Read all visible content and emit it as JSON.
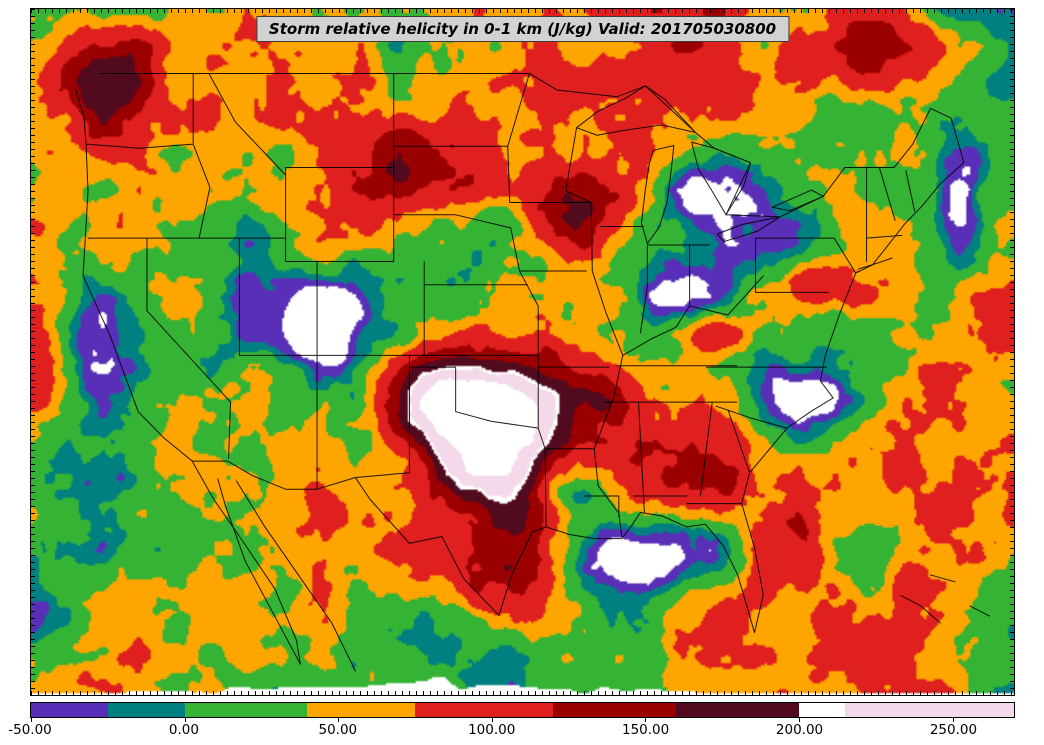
{
  "chart_data": {
    "type": "heatmap",
    "subtype": "filled_contour_weather_map",
    "variable": "Storm relative helicity in 0-1 km",
    "units": "J/kg",
    "valid_time": "201705030800",
    "title": "Storm relative helicity in 0-1 km (J/kg) Valid: 201705030800",
    "region": "Continental United States and adjacent Canada/Mexico with national and state borders, Great Lakes and coastlines",
    "legend_position": "bottom",
    "grid": false,
    "colorbar": {
      "orientation": "horizontal",
      "min": -50,
      "max": 270,
      "tick_values": [
        -50,
        0,
        50,
        100,
        150,
        200,
        250
      ],
      "tick_labels": [
        "-50.00",
        "0.00",
        "50.00",
        "100.00",
        "150.00",
        "200.00",
        "250.00"
      ],
      "under_over_color": "#ffffff",
      "segments": [
        {
          "from": -50,
          "to": -25,
          "color": "#5a2fb8"
        },
        {
          "from": -25,
          "to": 0,
          "color": "#008080"
        },
        {
          "from": 0,
          "to": 40,
          "color": "#35b335"
        },
        {
          "from": 40,
          "to": 75,
          "color": "#ffa500"
        },
        {
          "from": 75,
          "to": 120,
          "color": "#e01f1f"
        },
        {
          "from": 120,
          "to": 160,
          "color": "#9b0000"
        },
        {
          "from": 160,
          "to": 200,
          "color": "#520a1e"
        },
        {
          "from": 200,
          "to": 215,
          "color": "#ffffff"
        },
        {
          "from": 215,
          "to": 270,
          "color": "#f3d9e9"
        }
      ]
    },
    "field_regions": [
      {
        "name": "southern-plains-max",
        "note": "Extreme SRH maximum, white core (>270) with pink surround (215-270), over Oklahoma / southern Kansas / NW Texas",
        "cx": 0.47,
        "cy": 0.6,
        "rx": 0.075,
        "ry": 0.105,
        "amp": 330
      },
      {
        "name": "texas-panhandle-lobe",
        "note": "High-SRH lobe extending west into the Texas panhandle",
        "cx": 0.415,
        "cy": 0.57,
        "rx": 0.05,
        "ry": 0.06,
        "amp": 120
      },
      {
        "name": "south-texas-high",
        "note": "Dark maroon 160-200 J/kg over south-central Texas",
        "cx": 0.5,
        "cy": 0.81,
        "rx": 0.055,
        "ry": 0.085,
        "amp": 150
      },
      {
        "name": "ozark-high",
        "note": "100-150 J/kg over Arkansas / Missouri",
        "cx": 0.585,
        "cy": 0.56,
        "rx": 0.045,
        "ry": 0.05,
        "amp": 110
      },
      {
        "name": "northern-plains-high",
        "note": "Dark red band across Montana / Dakotas / Nebraska",
        "cx": 0.4,
        "cy": 0.22,
        "rx": 0.11,
        "ry": 0.08,
        "amp": 105
      },
      {
        "name": "upper-midwest-high",
        "note": "Dark red maximum over Iowa / southern Minnesota",
        "cx": 0.555,
        "cy": 0.3,
        "rx": 0.05,
        "ry": 0.07,
        "amp": 115
      },
      {
        "name": "pacific-nw-high",
        "note": "Dark red along the Pacific Northwest coast",
        "cx": 0.075,
        "cy": 0.1,
        "rx": 0.05,
        "ry": 0.09,
        "amp": 140
      },
      {
        "name": "northeast-high",
        "note": "Dark red over New England / eastern Canada",
        "cx": 0.86,
        "cy": 0.07,
        "rx": 0.08,
        "ry": 0.06,
        "amp": 120
      },
      {
        "name": "mid-atlantic-high",
        "note": "Red band near Virginia / Carolina coast",
        "cx": 0.8,
        "cy": 0.4,
        "rx": 0.05,
        "ry": 0.035,
        "amp": 95
      },
      {
        "name": "appalachian-high",
        "note": "Red band along Tennessee / Kentucky into Virginia",
        "cx": 0.7,
        "cy": 0.47,
        "rx": 0.06,
        "ry": 0.035,
        "amp": 85
      },
      {
        "name": "great-lakes-low",
        "note": "Negative SRH (purple with white under-range spots) over Lakes Michigan and Huron",
        "cx": 0.695,
        "cy": 0.29,
        "rx": 0.065,
        "ry": 0.09,
        "amp": -175
      },
      {
        "name": "ohio-valley-low",
        "note": "Teal/purple pocket over Indiana / Ohio",
        "cx": 0.66,
        "cy": 0.41,
        "rx": 0.04,
        "ry": 0.045,
        "amp": -95
      },
      {
        "name": "gulf-coast-low",
        "note": "Purple/teal minimum along Texas-Louisiana Gulf coast",
        "cx": 0.625,
        "cy": 0.8,
        "rx": 0.085,
        "ry": 0.055,
        "amp": -150
      },
      {
        "name": "east-texas-low",
        "note": "Purple pocket over east Texas",
        "cx": 0.555,
        "cy": 0.7,
        "rx": 0.03,
        "ry": 0.04,
        "amp": -90
      },
      {
        "name": "southeast-low",
        "note": "Teal area over Georgia / South Carolina",
        "cx": 0.785,
        "cy": 0.57,
        "rx": 0.045,
        "ry": 0.05,
        "amp": -85
      },
      {
        "name": "colorado-low",
        "note": "Teal/purple pocket with white under-range specks over the Colorado Rockies",
        "cx": 0.3,
        "cy": 0.46,
        "rx": 0.035,
        "ry": 0.05,
        "amp": -110
      },
      {
        "name": "california-coast-low",
        "note": "Teal strip along the central California coast",
        "cx": 0.065,
        "cy": 0.47,
        "rx": 0.03,
        "ry": 0.1,
        "amp": -75
      },
      {
        "name": "montana-low",
        "note": "Green/teal pocket over north-central Montana",
        "cx": 0.3,
        "cy": 0.12,
        "rx": 0.04,
        "ry": 0.045,
        "amp": -70
      },
      {
        "name": "atlantic-offshore-low",
        "note": "Purple streak off the mid-Atlantic coast",
        "cx": 0.945,
        "cy": 0.27,
        "rx": 0.022,
        "ry": 0.09,
        "amp": -110
      },
      {
        "name": "florida-coast-low",
        "note": "Teal along the Florida east coast and Keys",
        "cx": 0.85,
        "cy": 0.8,
        "rx": 0.03,
        "ry": 0.08,
        "amp": -70
      }
    ],
    "colors": {
      "page_background": "#ffffff",
      "frame": "#000000",
      "title_box_background": "#d2d2d2",
      "title_text": "#000000",
      "border_lines": "#000000"
    }
  }
}
